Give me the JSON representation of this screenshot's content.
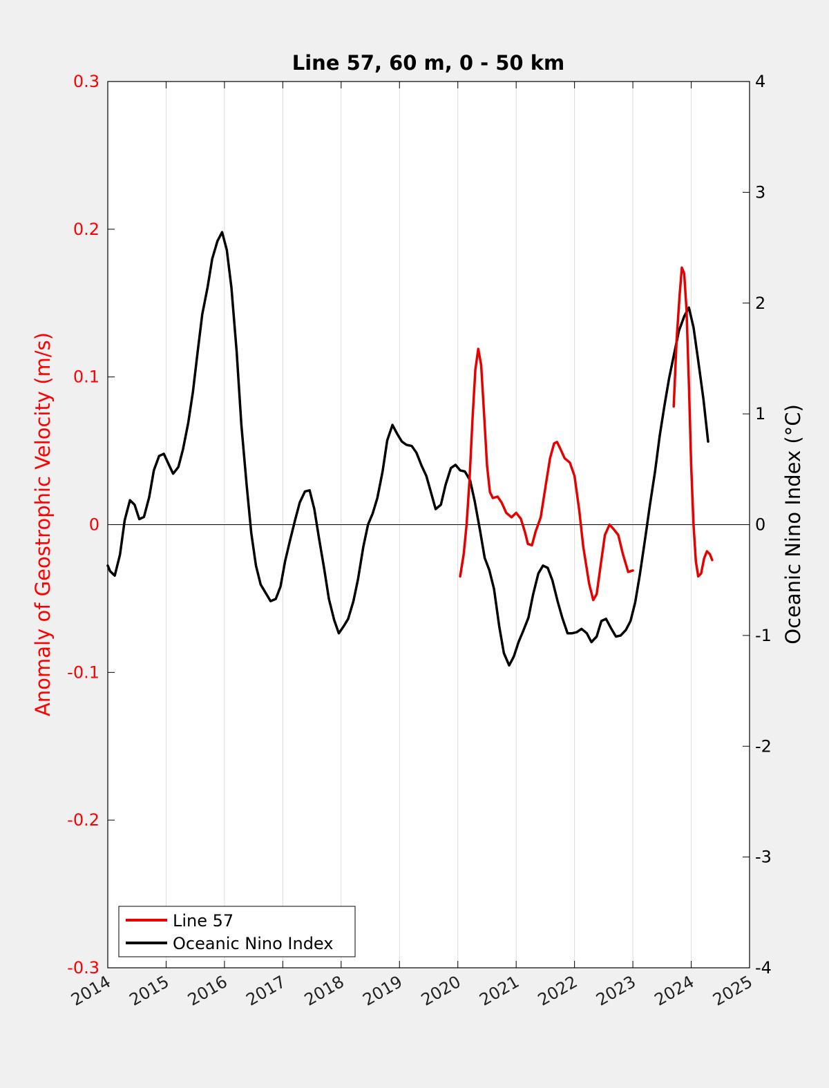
{
  "chart_data": {
    "type": "line",
    "title": "Line 57, 60 m, 0 - 50 km",
    "xlabel": "",
    "ylabel_left": "Anomaly of Geostrophic Velocity (m/s)",
    "ylabel_right": "Oceanic Nino Index (°C)",
    "xlim": [
      2014,
      2025
    ],
    "ylim_left": [
      -0.3,
      0.3
    ],
    "ylim_right": [
      -4,
      4
    ],
    "x_ticks": [
      "2014",
      "2015",
      "2016",
      "2017",
      "2018",
      "2019",
      "2020",
      "2021",
      "2022",
      "2023",
      "2024",
      "2025"
    ],
    "y_left_ticks": [
      "-0.3",
      "-0.2",
      "-0.1",
      "0",
      "0.1",
      "0.2",
      "0.3"
    ],
    "y_right_ticks": [
      "-4",
      "-3",
      "-2",
      "-1",
      "0",
      "1",
      "2",
      "3",
      "4"
    ],
    "grid": "vertical",
    "zero_line": true,
    "legend_position": "bottom-left",
    "colors": {
      "left_axis": "#ff0000",
      "line57": "#e60000",
      "oni": "#000000",
      "grid": "#dcdcdc",
      "background": "#f0f0f0",
      "plot_bg": "#ffffff"
    },
    "series": [
      {
        "name": "Line 57",
        "axis": "left",
        "segments": [
          [
            [
              2020.04,
              -0.035
            ],
            [
              2020.1,
              -0.02
            ],
            [
              2020.15,
              0.0
            ],
            [
              2020.2,
              0.03
            ],
            [
              2020.25,
              0.07
            ],
            [
              2020.3,
              0.105
            ],
            [
              2020.35,
              0.119
            ],
            [
              2020.4,
              0.108
            ],
            [
              2020.45,
              0.075
            ],
            [
              2020.5,
              0.04
            ],
            [
              2020.55,
              0.022
            ],
            [
              2020.6,
              0.018
            ],
            [
              2020.68,
              0.019
            ],
            [
              2020.75,
              0.015
            ],
            [
              2020.83,
              0.008
            ],
            [
              2020.92,
              0.005
            ],
            [
              2021.0,
              0.008
            ],
            [
              2021.08,
              0.004
            ],
            [
              2021.15,
              -0.005
            ],
            [
              2021.2,
              -0.013
            ],
            [
              2021.27,
              -0.014
            ],
            [
              2021.33,
              -0.005
            ],
            [
              2021.42,
              0.005
            ],
            [
              2021.5,
              0.025
            ],
            [
              2021.58,
              0.045
            ],
            [
              2021.65,
              0.055
            ],
            [
              2021.7,
              0.056
            ],
            [
              2021.75,
              0.052
            ],
            [
              2021.83,
              0.045
            ],
            [
              2021.92,
              0.042
            ],
            [
              2022.0,
              0.033
            ],
            [
              2022.08,
              0.01
            ],
            [
              2022.15,
              -0.015
            ],
            [
              2022.25,
              -0.04
            ],
            [
              2022.32,
              -0.051
            ],
            [
              2022.38,
              -0.047
            ],
            [
              2022.45,
              -0.027
            ],
            [
              2022.52,
              -0.007
            ],
            [
              2022.6,
              0.0
            ],
            [
              2022.67,
              -0.003
            ],
            [
              2022.75,
              -0.007
            ],
            [
              2022.83,
              -0.02
            ],
            [
              2022.92,
              -0.032
            ],
            [
              2023.0,
              -0.031
            ]
          ],
          [
            [
              2023.7,
              0.08
            ],
            [
              2023.75,
              0.125
            ],
            [
              2023.8,
              0.155
            ],
            [
              2023.84,
              0.174
            ],
            [
              2023.88,
              0.17
            ],
            [
              2023.92,
              0.145
            ],
            [
              2023.96,
              0.095
            ],
            [
              2024.0,
              0.04
            ],
            [
              2024.04,
              0.0
            ],
            [
              2024.08,
              -0.025
            ],
            [
              2024.12,
              -0.035
            ],
            [
              2024.17,
              -0.033
            ],
            [
              2024.22,
              -0.023
            ],
            [
              2024.27,
              -0.018
            ],
            [
              2024.32,
              -0.02
            ],
            [
              2024.36,
              -0.024
            ]
          ]
        ]
      },
      {
        "name": "Oceanic Nino Index",
        "axis": "right",
        "segments": [
          [
            [
              2014.0,
              -0.37
            ],
            [
              2014.04,
              -0.42
            ],
            [
              2014.12,
              -0.46
            ],
            [
              2014.21,
              -0.27
            ],
            [
              2014.29,
              0.04
            ],
            [
              2014.38,
              0.22
            ],
            [
              2014.46,
              0.18
            ],
            [
              2014.54,
              0.05
            ],
            [
              2014.62,
              0.07
            ],
            [
              2014.71,
              0.25
            ],
            [
              2014.79,
              0.49
            ],
            [
              2014.88,
              0.62
            ],
            [
              2014.96,
              0.64
            ],
            [
              2015.04,
              0.55
            ],
            [
              2015.12,
              0.46
            ],
            [
              2015.21,
              0.52
            ],
            [
              2015.29,
              0.68
            ],
            [
              2015.38,
              0.92
            ],
            [
              2015.46,
              1.2
            ],
            [
              2015.54,
              1.56
            ],
            [
              2015.62,
              1.9
            ],
            [
              2015.71,
              2.14
            ],
            [
              2015.79,
              2.4
            ],
            [
              2015.88,
              2.56
            ],
            [
              2015.96,
              2.64
            ],
            [
              2016.04,
              2.48
            ],
            [
              2016.12,
              2.14
            ],
            [
              2016.21,
              1.56
            ],
            [
              2016.29,
              0.9
            ],
            [
              2016.38,
              0.36
            ],
            [
              2016.46,
              -0.08
            ],
            [
              2016.54,
              -0.37
            ],
            [
              2016.62,
              -0.54
            ],
            [
              2016.71,
              -0.62
            ],
            [
              2016.79,
              -0.69
            ],
            [
              2016.88,
              -0.67
            ],
            [
              2016.96,
              -0.56
            ],
            [
              2017.04,
              -0.33
            ],
            [
              2017.12,
              -0.15
            ],
            [
              2017.21,
              0.04
            ],
            [
              2017.29,
              0.2
            ],
            [
              2017.38,
              0.3
            ],
            [
              2017.46,
              0.31
            ],
            [
              2017.54,
              0.14
            ],
            [
              2017.62,
              -0.12
            ],
            [
              2017.71,
              -0.4
            ],
            [
              2017.79,
              -0.67
            ],
            [
              2017.88,
              -0.86
            ],
            [
              2017.96,
              -0.98
            ],
            [
              2018.04,
              -0.92
            ],
            [
              2018.12,
              -0.85
            ],
            [
              2018.21,
              -0.69
            ],
            [
              2018.29,
              -0.49
            ],
            [
              2018.38,
              -0.2
            ],
            [
              2018.46,
              0.0
            ],
            [
              2018.54,
              0.1
            ],
            [
              2018.62,
              0.24
            ],
            [
              2018.71,
              0.48
            ],
            [
              2018.79,
              0.76
            ],
            [
              2018.88,
              0.9
            ],
            [
              2018.96,
              0.82
            ],
            [
              2019.04,
              0.75
            ],
            [
              2019.12,
              0.72
            ],
            [
              2019.21,
              0.71
            ],
            [
              2019.29,
              0.65
            ],
            [
              2019.38,
              0.53
            ],
            [
              2019.46,
              0.44
            ],
            [
              2019.54,
              0.29
            ],
            [
              2019.62,
              0.14
            ],
            [
              2019.71,
              0.18
            ],
            [
              2019.79,
              0.36
            ],
            [
              2019.88,
              0.51
            ],
            [
              2019.96,
              0.54
            ],
            [
              2020.04,
              0.49
            ],
            [
              2020.12,
              0.48
            ],
            [
              2020.21,
              0.4
            ],
            [
              2020.29,
              0.21
            ],
            [
              2020.38,
              -0.05
            ],
            [
              2020.46,
              -0.3
            ],
            [
              2020.54,
              -0.41
            ],
            [
              2020.62,
              -0.58
            ],
            [
              2020.71,
              -0.92
            ],
            [
              2020.79,
              -1.16
            ],
            [
              2020.88,
              -1.27
            ],
            [
              2020.96,
              -1.19
            ],
            [
              2021.04,
              -1.06
            ],
            [
              2021.12,
              -0.96
            ],
            [
              2021.21,
              -0.84
            ],
            [
              2021.29,
              -0.63
            ],
            [
              2021.38,
              -0.44
            ],
            [
              2021.46,
              -0.37
            ],
            [
              2021.54,
              -0.39
            ],
            [
              2021.62,
              -0.5
            ],
            [
              2021.71,
              -0.69
            ],
            [
              2021.79,
              -0.84
            ],
            [
              2021.88,
              -0.98
            ],
            [
              2021.96,
              -0.98
            ],
            [
              2022.04,
              -0.97
            ],
            [
              2022.12,
              -0.94
            ],
            [
              2022.21,
              -0.98
            ],
            [
              2022.29,
              -1.06
            ],
            [
              2022.38,
              -1.01
            ],
            [
              2022.46,
              -0.87
            ],
            [
              2022.54,
              -0.85
            ],
            [
              2022.62,
              -0.93
            ],
            [
              2022.71,
              -1.01
            ],
            [
              2022.79,
              -1.0
            ],
            [
              2022.88,
              -0.95
            ],
            [
              2022.96,
              -0.87
            ],
            [
              2023.04,
              -0.7
            ],
            [
              2023.12,
              -0.45
            ],
            [
              2023.21,
              -0.13
            ],
            [
              2023.29,
              0.17
            ],
            [
              2023.38,
              0.48
            ],
            [
              2023.46,
              0.8
            ],
            [
              2023.54,
              1.07
            ],
            [
              2023.62,
              1.32
            ],
            [
              2023.71,
              1.55
            ],
            [
              2023.79,
              1.75
            ],
            [
              2023.88,
              1.88
            ],
            [
              2023.96,
              1.96
            ],
            [
              2024.04,
              1.78
            ],
            [
              2024.12,
              1.48
            ],
            [
              2024.21,
              1.13
            ],
            [
              2024.29,
              0.75
            ]
          ]
        ]
      }
    ]
  }
}
